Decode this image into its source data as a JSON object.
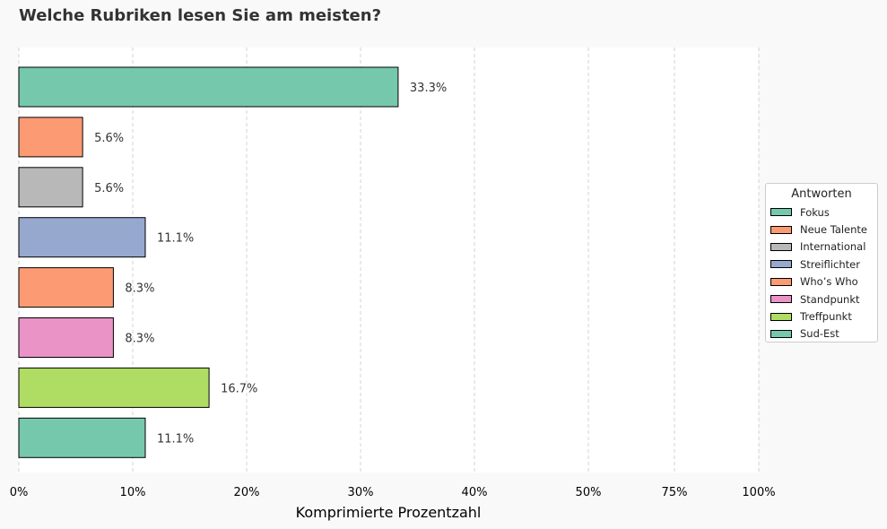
{
  "chart_data": {
    "type": "bar",
    "orientation": "horizontal",
    "title": "Welche Rubriken lesen Sie am meisten?",
    "xlabel": "Komprimierte Prozentzahl",
    "ylabel": "",
    "categories": [
      "Fokus",
      "Neue Talente",
      "International",
      "Streiflichter",
      "Who’s Who",
      "Standpunkt",
      "Treffpunkt",
      "Sud-Est"
    ],
    "values": [
      33.3,
      5.6,
      5.6,
      11.1,
      8.3,
      8.3,
      16.7,
      11.1
    ],
    "value_labels": [
      "33.3%",
      "5.6%",
      "5.6%",
      "11.1%",
      "8.3%",
      "8.3%",
      "16.7%",
      "11.1%"
    ],
    "colors": [
      "#76c8ad",
      "#fc9b73",
      "#b8b8b8",
      "#97a8cf",
      "#fc9b73",
      "#ea93c6",
      "#afdc62",
      "#76c8ad"
    ],
    "xticks": [
      "0%",
      "10%",
      "20%",
      "30%",
      "40%",
      "50%",
      "75%",
      "100%"
    ],
    "xscale": "compressed",
    "grid": "x-dashed",
    "legend": {
      "title": "Antworten",
      "placement": "right",
      "entries": [
        "Fokus",
        "Neue Talente",
        "International",
        "Streiflichter",
        "Who’s Who",
        "Standpunkt",
        "Treffpunkt",
        "Sud-Est"
      ]
    }
  }
}
